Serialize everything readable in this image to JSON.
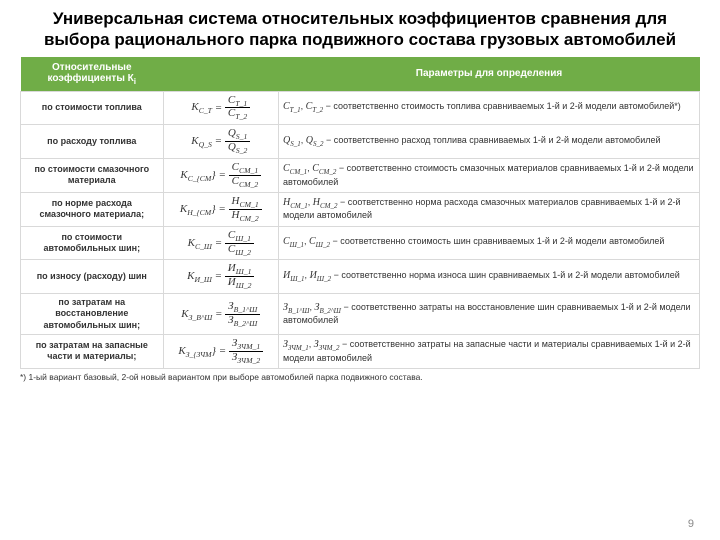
{
  "title": "Универсальная система относительных коэффициентов сравнения для выбора рационального парка подвижного состава грузовых автомобилей",
  "header": {
    "col0": "Относительные коэффициенты К",
    "col0_sub": "i",
    "col2": "Параметры для определения",
    "bg": "#70ad47"
  },
  "rows": [
    {
      "label": "по стоимости топлива",
      "lhs": "K",
      "lhs_sub": "C_T",
      "num": "C",
      "num_sub": "T_1",
      "den": "C",
      "den_sub": "T_2",
      "p1": "C",
      "p1_sub": "T_1",
      "p2": "C",
      "p2_sub": "T_2",
      "desc": " − соответственно стоимость топлива сравниваемых          1-й и 2-й модели автомобилей*)"
    },
    {
      "label": "по расходу топлива",
      "lhs": "K",
      "lhs_sub": "Q_S",
      "num": "Q",
      "num_sub": "S_1",
      "den": "Q",
      "den_sub": "S_2",
      "p1": "Q",
      "p1_sub": "S_1",
      "p2": "Q",
      "p2_sub": "S_2",
      "desc": " − соответственно расход топлива сравниваемых 1-й и 2-й модели автомобилей"
    },
    {
      "label": "по стоимости смазочного материала",
      "lhs": "K",
      "lhs_sub": "C_{CM}",
      "num": "C",
      "num_sub": "CM_1",
      "den": "C",
      "den_sub": "CM_2",
      "p1": "C",
      "p1_sub": "CM_1",
      "p2": "C",
      "p2_sub": "CM_2",
      "desc": " − соответственно стоимость смазочных материалов сравниваемых 1-й и 2-й модели автомобилей"
    },
    {
      "label": "по норме расхода смазочного материала;",
      "lhs": "K",
      "lhs_sub": "H_{CM}",
      "num": "H",
      "num_sub": "CM_1",
      "den": "H",
      "den_sub": "CM_2",
      "p1": "H",
      "p1_sub": "CM_1",
      "p2": "H",
      "p2_sub": "CM_2",
      "desc": " − соответственно норма расхода смазочных материалов сравниваемых 1-й и 2-й модели автомобилей"
    },
    {
      "label": "по стоимости автомобильных шин;",
      "lhs": "K",
      "lhs_sub": "C_Ш",
      "num": "C",
      "num_sub": "Ш_1",
      "den": "C",
      "den_sub": "Ш_2",
      "p1": "C",
      "p1_sub": "Ш_1",
      "p2": "C",
      "p2_sub": "Ш_2",
      "desc": " − соответственно стоимость шин сравниваемых 1-й и 2-й модели автомобилей"
    },
    {
      "label": "по износу (расходу) шин",
      "lhs": "K",
      "lhs_sub": "И_Ш",
      "num": "И",
      "num_sub": "Ш_1",
      "den": "И",
      "den_sub": "Ш_2",
      "p1": "И",
      "p1_sub": "Ш_1",
      "p2": "И",
      "p2_sub": "Ш_2",
      "desc": " − соответственно норма износа шин сравниваемых 1-й и 2-й модели автомобилей"
    },
    {
      "label": "по затратам на восстановление автомобильных шин;",
      "lhs": "K",
      "lhs_sub": "З_В^Ш",
      "num": "З",
      "num_sub": "В_1^Ш",
      "den": "З",
      "den_sub": "В_2^Ш",
      "p1": "З",
      "p1_sub": "В_1^Ш",
      "p2": "З",
      "p2_sub": "В_2^Ш",
      "desc": " − соответственно затраты на восстановление шин сравниваемых 1-й и 2-й модели автомобилей"
    },
    {
      "label": "по затратам на запасные части и материалы;",
      "lhs": "K",
      "lhs_sub": "З_{ЗЧМ}",
      "num": "З",
      "num_sub": "ЗЧМ_1",
      "den": "З",
      "den_sub": "ЗЧМ_2",
      "p1": "З",
      "p1_sub": "ЗЧМ_1",
      "p2": "З",
      "p2_sub": "ЗЧМ_2",
      "desc": " − соответственно затраты на запасные части и материалы сравниваемых 1-й и 2-й модели автомобилей"
    }
  ],
  "footnote": "*) 1-ый вариант базовый, 2-ой новый вариантом при выборе автомобилей парка подвижного состава.",
  "pagenum": "9"
}
